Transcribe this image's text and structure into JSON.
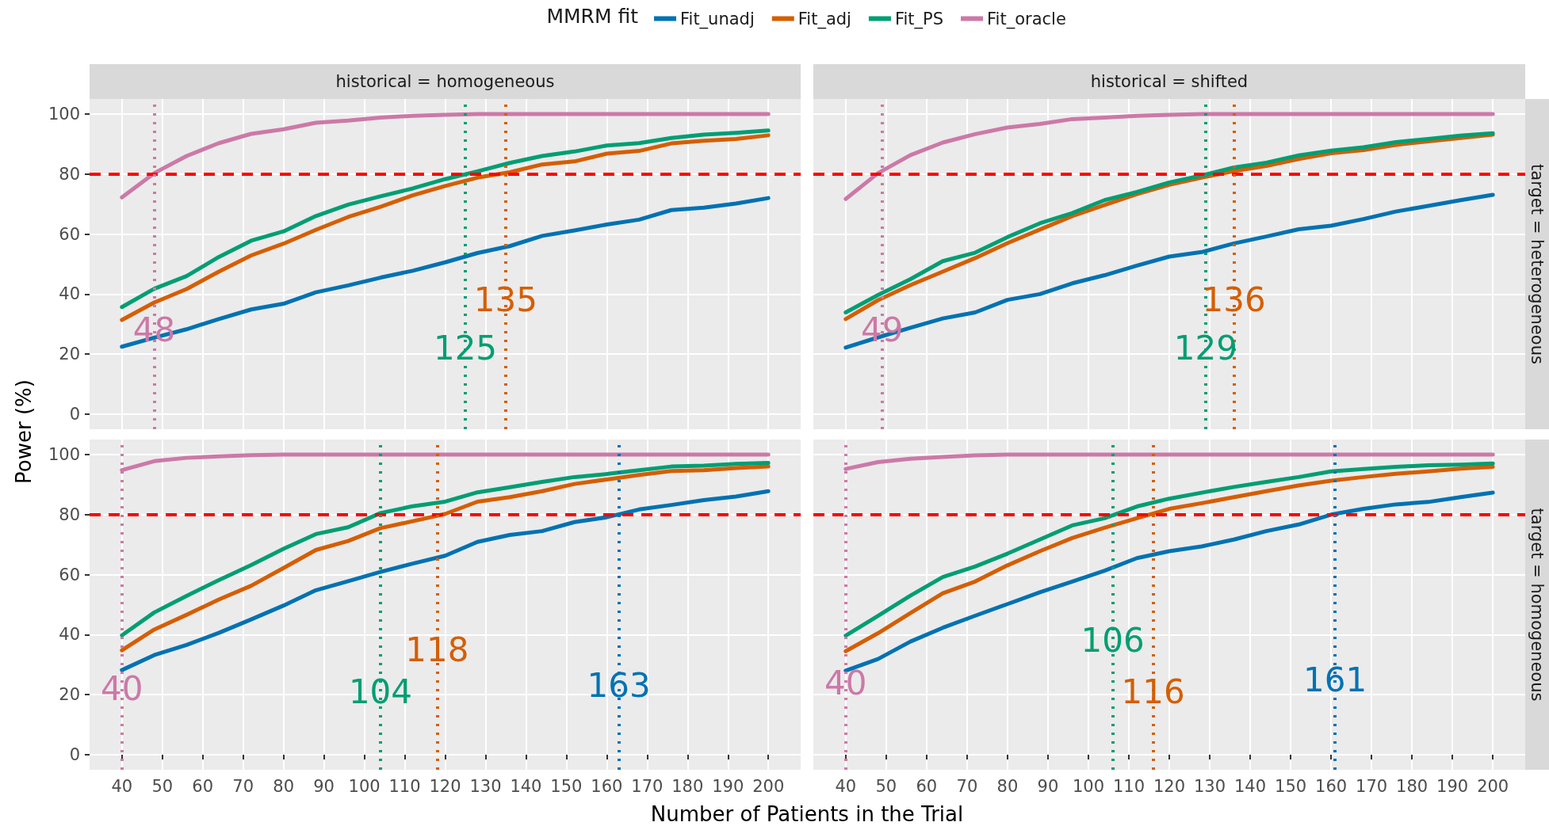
{
  "chart_data": [
    {
      "type": "line",
      "title": "historical = homogeneous",
      "annotations": [
        {
          "text": "48",
          "x": 48,
          "y": 28
        },
        {
          "text": "125",
          "x": 125,
          "y": 22
        },
        {
          "text": "135",
          "x": 135,
          "y": 38
        }
      ],
      "ylabel": "Power (%)",
      "legend_title": "MMRM fit",
      "legend": "top",
      "tick_labels": "y",
      "grid": true,
      "marker": "none",
      "x": [
        40,
        48,
        56,
        64,
        72,
        80,
        88,
        96,
        104,
        112,
        120,
        128,
        136,
        144,
        152,
        160,
        168,
        176,
        184,
        192,
        200
      ],
      "xlim": [
        32,
        208
      ],
      "xticks": [
        40,
        50,
        60,
        70,
        80,
        90,
        100,
        110,
        120,
        130,
        140,
        150,
        160,
        170,
        180,
        190,
        200
      ],
      "ylim": [
        -5,
        105
      ],
      "yticks": [
        0,
        20,
        40,
        60,
        80,
        100
      ],
      "series": [
        {
          "name": "Fit_unadj",
          "color": "#0072b2",
          "values": [
            22.5,
            25.5,
            28.3,
            31.7,
            34.9,
            36.8,
            40.6,
            42.9,
            45.5,
            47.8,
            50.6,
            53.7,
            56,
            59.4,
            61.2,
            63.2,
            64.8,
            68,
            68.8,
            70.2,
            72
          ]
        },
        {
          "name": "Fit_adj",
          "color": "#d55e00",
          "values": [
            31.4,
            37.2,
            41.7,
            47.5,
            52.9,
            56.8,
            61.4,
            65.7,
            69.1,
            72.9,
            76,
            78.8,
            80.6,
            83.2,
            84.2,
            86.8,
            87.7,
            90.2,
            91.1,
            91.7,
            92.9
          ]
        },
        {
          "name": "Fit_PS",
          "color": "#009e73",
          "values": [
            35.7,
            41.8,
            46,
            52.4,
            57.8,
            60.9,
            66,
            69.8,
            72.6,
            75.2,
            78.3,
            80.9,
            83.7,
            86,
            87.5,
            89.5,
            90.3,
            92,
            93.1,
            93.7,
            94.5
          ]
        },
        {
          "name": "Fit_oracle",
          "color": "#cc79a7",
          "values": [
            72.2,
            80.3,
            86,
            90.3,
            93.4,
            94.9,
            97.1,
            97.8,
            98.8,
            99.4,
            99.7,
            100,
            100,
            100,
            100,
            100,
            100,
            100,
            100,
            100,
            100
          ]
        }
      ],
      "ref_lines": [
        {
          "axis": "y",
          "value": 80,
          "color": "#ff0000",
          "line_style": "dashed"
        },
        {
          "axis": "x",
          "value": 48,
          "color": "#cc79a7",
          "line_style": "dotted"
        },
        {
          "axis": "x",
          "value": 125,
          "color": "#009e73",
          "line_style": "dotted"
        },
        {
          "axis": "x",
          "value": 135,
          "color": "#d55e00",
          "line_style": "dotted"
        }
      ]
    },
    {
      "type": "line",
      "title": "historical = shifted",
      "annotations": [
        "target = heterogeneous",
        {
          "text": "49",
          "x": 49,
          "y": 28
        },
        {
          "text": "129",
          "x": 129,
          "y": 22
        },
        {
          "text": "136",
          "x": 136,
          "y": 38
        }
      ],
      "tick_labels": false,
      "grid": true,
      "marker": "none",
      "x": [
        40,
        48,
        56,
        64,
        72,
        80,
        88,
        96,
        104,
        112,
        120,
        128,
        136,
        144,
        152,
        160,
        168,
        176,
        184,
        192,
        200
      ],
      "xlim": [
        32,
        208
      ],
      "xticks": [
        40,
        50,
        60,
        70,
        80,
        90,
        100,
        110,
        120,
        130,
        140,
        150,
        160,
        170,
        180,
        190,
        200
      ],
      "ylim": [
        -5,
        105
      ],
      "yticks": [
        0,
        20,
        40,
        60,
        80,
        100
      ],
      "series": [
        {
          "color": "#0072b2",
          "values": [
            22.2,
            25.6,
            28.8,
            31.9,
            33.9,
            38.1,
            40,
            43.6,
            46.3,
            49.5,
            52.5,
            54,
            56.9,
            59.2,
            61.6,
            62.8,
            65,
            67.5,
            69.4,
            71.3,
            73.1
          ]
        },
        {
          "color": "#d55e00",
          "values": [
            31.7,
            38,
            43,
            47.5,
            52,
            57,
            61.5,
            66,
            69.7,
            73.3,
            76.4,
            78.8,
            81,
            82.7,
            85,
            86.9,
            88,
            89.7,
            90.9,
            92,
            93.1
          ]
        },
        {
          "color": "#009e73",
          "values": [
            33.9,
            39.7,
            45,
            51,
            53.8,
            59,
            63.6,
            67,
            71.3,
            74,
            77.2,
            79.5,
            82.2,
            83.8,
            86.2,
            87.8,
            88.9,
            90.6,
            91.7,
            92.8,
            93.6
          ]
        },
        {
          "color": "#cc79a7",
          "values": [
            71.7,
            80.3,
            86.3,
            90.5,
            93.3,
            95.5,
            96.7,
            98.3,
            98.8,
            99.4,
            99.7,
            100,
            100,
            100,
            100,
            100,
            100,
            100,
            100,
            100,
            100
          ]
        }
      ],
      "ref_lines": [
        {
          "axis": "y",
          "value": 80,
          "color": "#ff0000",
          "line_style": "dashed"
        },
        {
          "axis": "x",
          "value": 49,
          "color": "#cc79a7",
          "line_style": "dotted"
        },
        {
          "axis": "x",
          "value": 129,
          "color": "#009e73",
          "line_style": "dotted"
        },
        {
          "axis": "x",
          "value": 136,
          "color": "#d55e00",
          "line_style": "dotted"
        }
      ]
    },
    {
      "type": "line",
      "xlabel": "Number of Patients in the Trial",
      "grid": true,
      "marker": "none",
      "annotations": [
        {
          "text": "40",
          "x": 40,
          "y": 22
        },
        {
          "text": "104",
          "x": 104,
          "y": 21
        },
        {
          "text": "118",
          "x": 118,
          "y": 35
        },
        {
          "text": "163",
          "x": 163,
          "y": 23
        }
      ],
      "x": [
        40,
        48,
        56,
        64,
        72,
        80,
        88,
        96,
        104,
        112,
        120,
        128,
        136,
        144,
        152,
        160,
        168,
        176,
        184,
        192,
        200
      ],
      "xlim": [
        32,
        208
      ],
      "xticks": [
        40,
        50,
        60,
        70,
        80,
        90,
        100,
        110,
        120,
        130,
        140,
        150,
        160,
        170,
        180,
        190,
        200
      ],
      "ylim": [
        -5,
        105
      ],
      "yticks": [
        0,
        20,
        40,
        60,
        80,
        100
      ],
      "series": [
        {
          "color": "#0072b2",
          "values": [
            28.2,
            33.2,
            36.6,
            40.6,
            45.1,
            49.7,
            54.8,
            57.8,
            60.9,
            63.7,
            66.3,
            70.9,
            73.2,
            74.5,
            77.5,
            79.1,
            81.7,
            83.2,
            84.8,
            86,
            87.8
          ]
        },
        {
          "color": "#d55e00",
          "values": [
            34.8,
            41.7,
            46.6,
            51.7,
            56.3,
            62.2,
            68.2,
            71.2,
            75.5,
            77.8,
            80.2,
            84.3,
            85.8,
            87.8,
            90.2,
            91.7,
            93.2,
            94.5,
            94.8,
            95.5,
            96
          ]
        },
        {
          "color": "#009e73",
          "values": [
            39.8,
            47.4,
            52.9,
            58.2,
            63.2,
            68.6,
            73.5,
            75.8,
            80.5,
            82.8,
            84.3,
            87.4,
            89.1,
            90.9,
            92.5,
            93.5,
            94.8,
            96,
            96.3,
            96.9,
            97.2
          ]
        },
        {
          "color": "#cc79a7",
          "values": [
            94.8,
            97.8,
            98.9,
            99.4,
            99.8,
            100,
            100,
            100,
            100,
            100,
            100,
            100,
            100,
            100,
            100,
            100,
            100,
            100,
            100,
            100,
            100
          ]
        }
      ],
      "ref_lines": [
        {
          "axis": "y",
          "value": 80,
          "color": "#ff0000",
          "line_style": "dashed"
        },
        {
          "axis": "x",
          "value": 40,
          "color": "#cc79a7",
          "line_style": "dotted"
        },
        {
          "axis": "x",
          "value": 104,
          "color": "#009e73",
          "line_style": "dotted"
        },
        {
          "axis": "x",
          "value": 118,
          "color": "#d55e00",
          "line_style": "dotted"
        },
        {
          "axis": "x",
          "value": 163,
          "color": "#0072b2",
          "line_style": "dotted"
        }
      ]
    },
    {
      "type": "line",
      "tick_labels": "x",
      "grid": true,
      "marker": "none",
      "annotations": [
        "target = homogeneous",
        {
          "text": "40",
          "x": 40,
          "y": 24
        },
        {
          "text": "106",
          "x": 106,
          "y": 38
        },
        {
          "text": "116",
          "x": 116,
          "y": 21
        },
        {
          "text": "161",
          "x": 161,
          "y": 25
        }
      ],
      "x": [
        40,
        48,
        56,
        64,
        72,
        80,
        88,
        96,
        104,
        112,
        120,
        128,
        136,
        144,
        152,
        160,
        168,
        176,
        184,
        192,
        200
      ],
      "xlim": [
        32,
        208
      ],
      "xticks": [
        40,
        50,
        60,
        70,
        80,
        90,
        100,
        110,
        120,
        130,
        140,
        150,
        160,
        170,
        180,
        190,
        200
      ],
      "ylim": [
        -5,
        105
      ],
      "yticks": [
        0,
        20,
        40,
        60,
        80,
        100
      ],
      "series": [
        {
          "color": "#0072b2",
          "values": [
            28,
            31.9,
            37.7,
            42.3,
            46.3,
            50.2,
            54.1,
            57.7,
            61.3,
            65.5,
            67.8,
            69.4,
            71.7,
            74.5,
            76.7,
            80,
            81.9,
            83.4,
            84.2,
            85.8,
            87.3
          ]
        },
        {
          "color": "#d55e00",
          "values": [
            34.5,
            40.5,
            47.2,
            53.8,
            57.7,
            63.1,
            67.8,
            72.2,
            75.6,
            78.8,
            81.9,
            83.8,
            85.8,
            87.8,
            89.7,
            91.3,
            92.5,
            93.6,
            94.4,
            95.3,
            95.9
          ]
        },
        {
          "color": "#009e73",
          "values": [
            39.7,
            46.3,
            53,
            59.2,
            62.7,
            67,
            71.7,
            76.4,
            78.8,
            82.7,
            85.3,
            87.3,
            89.2,
            90.9,
            92.5,
            94.4,
            95.2,
            95.9,
            96.4,
            96.6,
            97
          ]
        },
        {
          "color": "#cc79a7",
          "values": [
            95.2,
            97.5,
            98.6,
            99.2,
            99.7,
            100,
            100,
            100,
            100,
            100,
            100,
            100,
            100,
            100,
            100,
            100,
            100,
            100,
            100,
            100,
            100
          ]
        }
      ],
      "ref_lines": [
        {
          "axis": "y",
          "value": 80,
          "color": "#ff0000",
          "line_style": "dashed"
        },
        {
          "axis": "x",
          "value": 40,
          "color": "#cc79a7",
          "line_style": "dotted"
        },
        {
          "axis": "x",
          "value": 106,
          "color": "#009e73",
          "line_style": "dotted"
        },
        {
          "axis": "x",
          "value": 116,
          "color": "#d55e00",
          "line_style": "dotted"
        },
        {
          "axis": "x",
          "value": 161,
          "color": "#0072b2",
          "line_style": "dotted"
        }
      ]
    }
  ]
}
